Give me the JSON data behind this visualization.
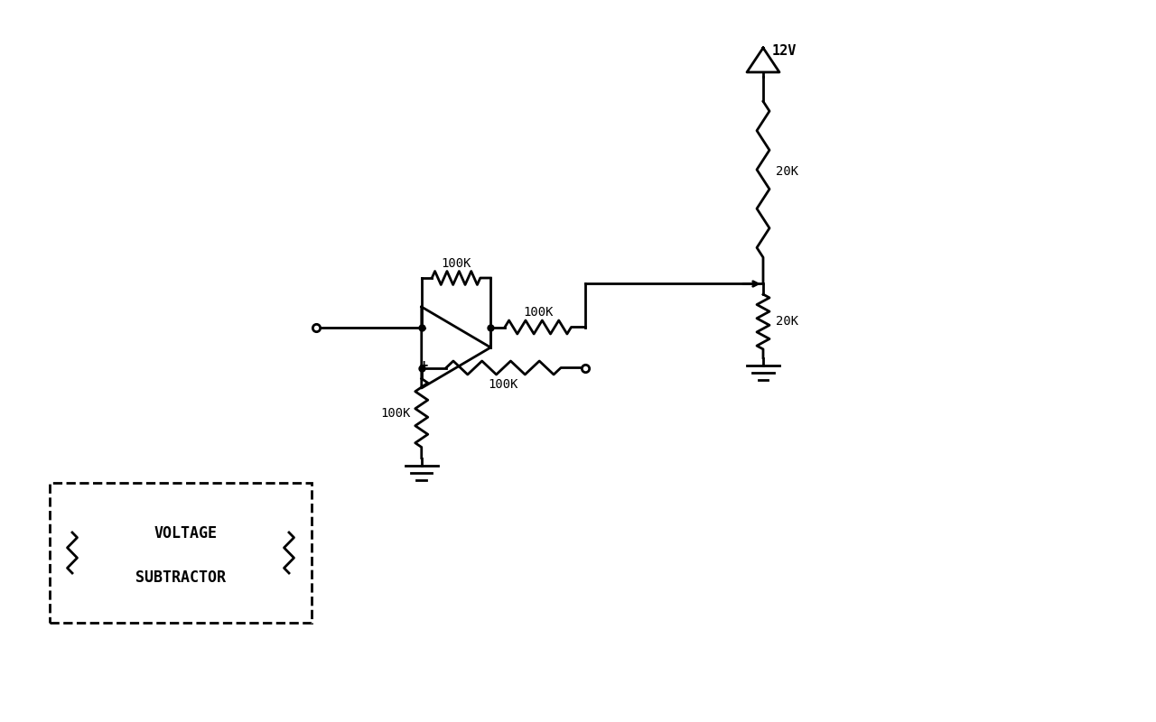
{
  "bg_color": "#ffffff",
  "line_color": "#000000",
  "lw": 2.0,
  "font_family": "monospace",
  "label_100k_top": "100K",
  "label_100k_right_top": "100K",
  "label_100k_right_bot": "100K",
  "label_100k_bot": "100K",
  "label_20k_top": "20K",
  "label_20k_bot": "20K",
  "label_12v": "12V",
  "label_voltage": "VOLTAGE",
  "label_subtractor": "SUBTRACTOR"
}
